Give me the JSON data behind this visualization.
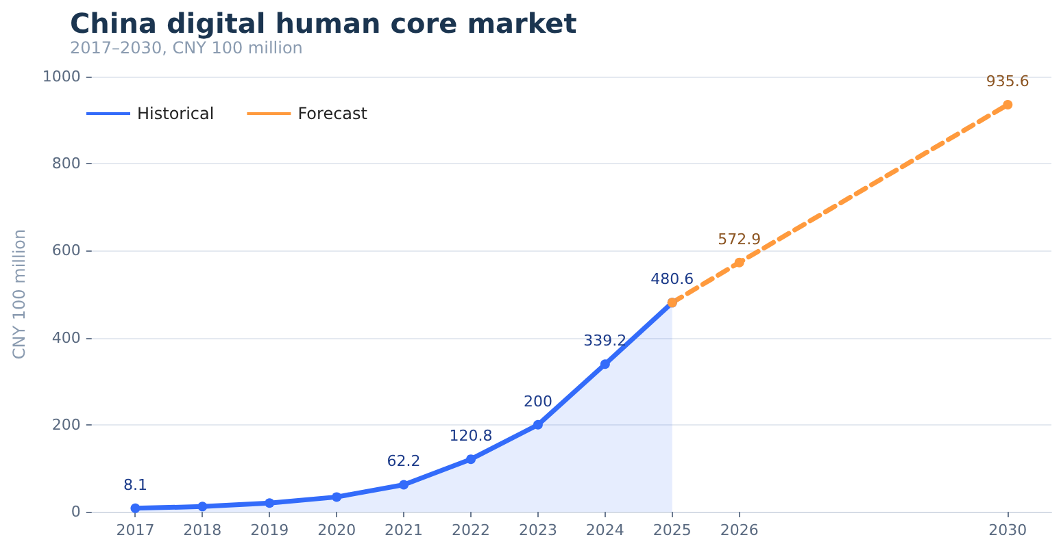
{
  "chart_data": {
    "type": "line",
    "title": "China digital human core market",
    "subtitle": "2017–2030, CNY 100 million",
    "ylabel": "CNY 100 million",
    "xlim": [
      2016.35,
      2030.65
    ],
    "xticks": [
      2017,
      2018,
      2019,
      2020,
      2021,
      2022,
      2023,
      2024,
      2025,
      2026,
      2030
    ],
    "ylim": [
      0,
      1000
    ],
    "yticks": [
      0,
      200,
      400,
      600,
      800,
      1000
    ],
    "series": [
      {
        "name": "Historical",
        "type": "area",
        "color": "#336bfa",
        "line_style": "solid",
        "x": [
          2017,
          2018,
          2019,
          2020,
          2021,
          2022,
          2023,
          2024,
          2025
        ],
        "values": [
          8.1,
          12,
          20,
          34,
          62.2,
          120.8,
          200,
          339.2,
          480.6
        ],
        "value_labels": [
          "8.1",
          null,
          null,
          null,
          "62.2",
          "120.8",
          "200",
          "339.2",
          "480.6"
        ]
      },
      {
        "name": "Forecast",
        "color": "#ff9a3d",
        "line_style": "dashed",
        "x": [
          2025,
          2026,
          2030
        ],
        "values": [
          480.6,
          572.9,
          935.6
        ],
        "value_labels": [
          null,
          "572.9",
          "935.6"
        ]
      }
    ],
    "grid": "y",
    "legend": "top left",
    "marker": "circle"
  }
}
